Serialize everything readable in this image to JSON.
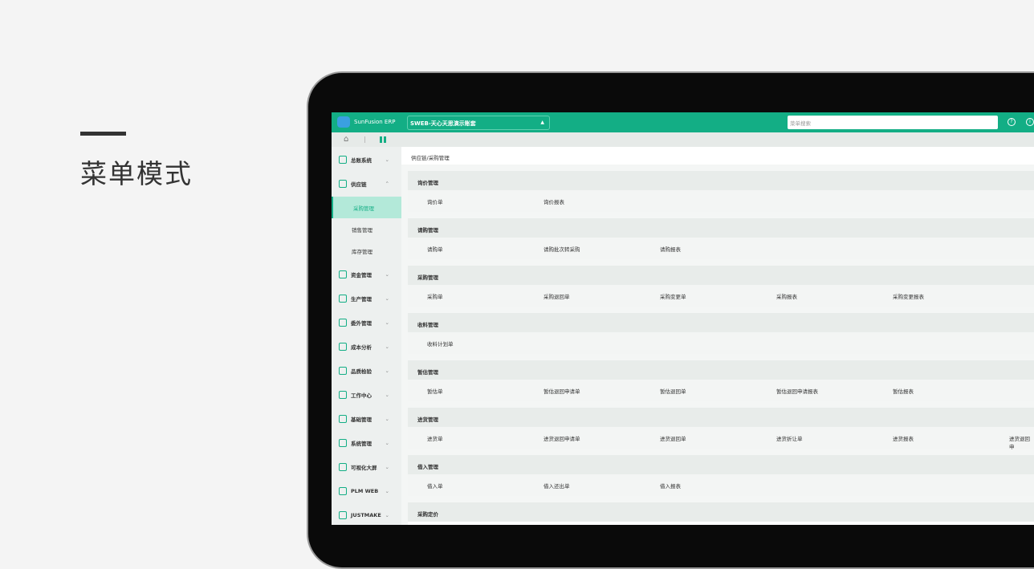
{
  "hero": {
    "title": "菜单模式"
  },
  "app": {
    "brand": "SunFusion ERP",
    "account": "SWEB-天心天思演示账套",
    "search_placeholder": "菜单搜索",
    "accent": "#13ae85"
  },
  "breadcrumb": "供应链/采购管理",
  "sidebar": [
    {
      "label": "总账系统",
      "expanded": false
    },
    {
      "label": "供应链",
      "expanded": true,
      "children": [
        "采购管理",
        "销售管理",
        "库存管理"
      ],
      "active": "采购管理"
    },
    {
      "label": "资金管理"
    },
    {
      "label": "生产管理"
    },
    {
      "label": "委外管理"
    },
    {
      "label": "成本分析"
    },
    {
      "label": "品质检验"
    },
    {
      "label": "工作中心"
    },
    {
      "label": "基础管理"
    },
    {
      "label": "系统管理"
    },
    {
      "label": "可视化大屏"
    },
    {
      "label": "PLM WEB"
    },
    {
      "label": "JUSTMAKE"
    }
  ],
  "sections": [
    {
      "title": "询价管理",
      "items": [
        "询价单",
        "询价报表"
      ]
    },
    {
      "title": "请购管理",
      "items": [
        "请购单",
        "请购批次转采购",
        "请购报表"
      ]
    },
    {
      "title": "采购管理",
      "items": [
        "采购单",
        "采购退回单",
        "采购变更单",
        "采购报表",
        "采购变更报表"
      ]
    },
    {
      "title": "收料管理",
      "items": [
        "收料计划单"
      ]
    },
    {
      "title": "暂估管理",
      "items": [
        "暂估单",
        "暂估退回申请单",
        "暂估退回单",
        "暂估退回申请报表",
        "暂估报表"
      ]
    },
    {
      "title": "进货管理",
      "items": [
        "进货单",
        "进货退回申请单",
        "进货退回单",
        "进货折让单",
        "进货报表",
        "进货退回申"
      ]
    },
    {
      "title": "借入管理",
      "items": [
        "借入单",
        "借入还出单",
        "借入报表"
      ]
    },
    {
      "title": "采购定价",
      "items": []
    }
  ]
}
